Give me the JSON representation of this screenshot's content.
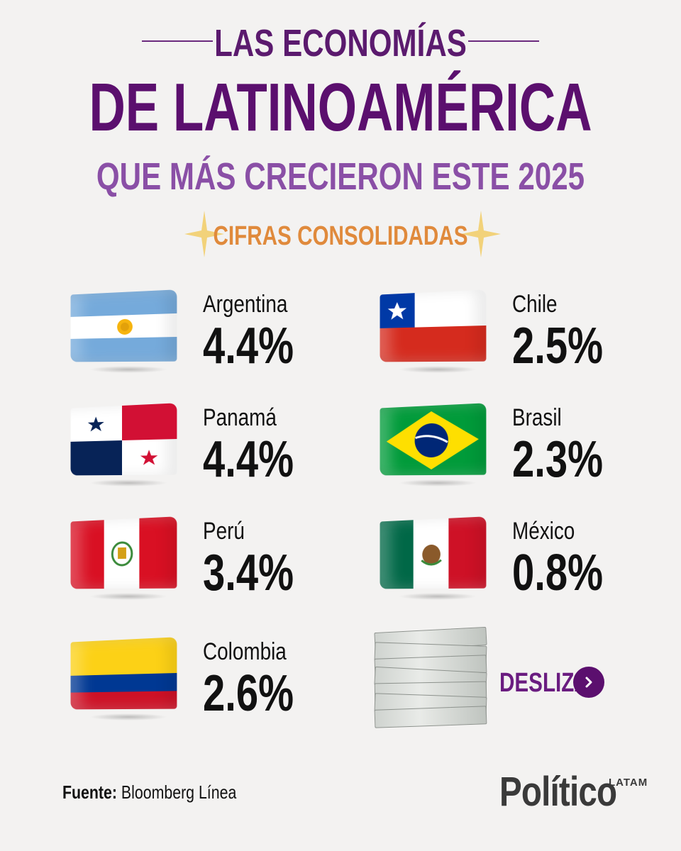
{
  "header": {
    "line1": "LAS ECONOMÍAS",
    "line2": "DE LATINOAMÉRICA",
    "line3": "QUE MÁS CRECIERON ESTE 2025",
    "subtitle": "CIFRAS CONSOLIDADAS"
  },
  "countries": [
    {
      "name": "Argentina",
      "value": "4.4%"
    },
    {
      "name": "Panamá",
      "value": "4.4%"
    },
    {
      "name": "Perú",
      "value": "3.4%"
    },
    {
      "name": "Colombia",
      "value": "2.6%"
    },
    {
      "name": "Chile",
      "value": "2.5%"
    },
    {
      "name": "Brasil",
      "value": "2.3%"
    },
    {
      "name": "México",
      "value": "0.8%"
    }
  ],
  "cta": {
    "label": "DESLIZA",
    "icon": "chevron-right-icon"
  },
  "footer": {
    "source_label": "Fuente:",
    "source_value": "Bloomberg Línea",
    "logo_text": "Político",
    "logo_tag": "LATAM"
  },
  "colors": {
    "title_dark": "#5b0f6e",
    "title_light": "#8a4fa6",
    "subtitle": "#e08a3c"
  }
}
